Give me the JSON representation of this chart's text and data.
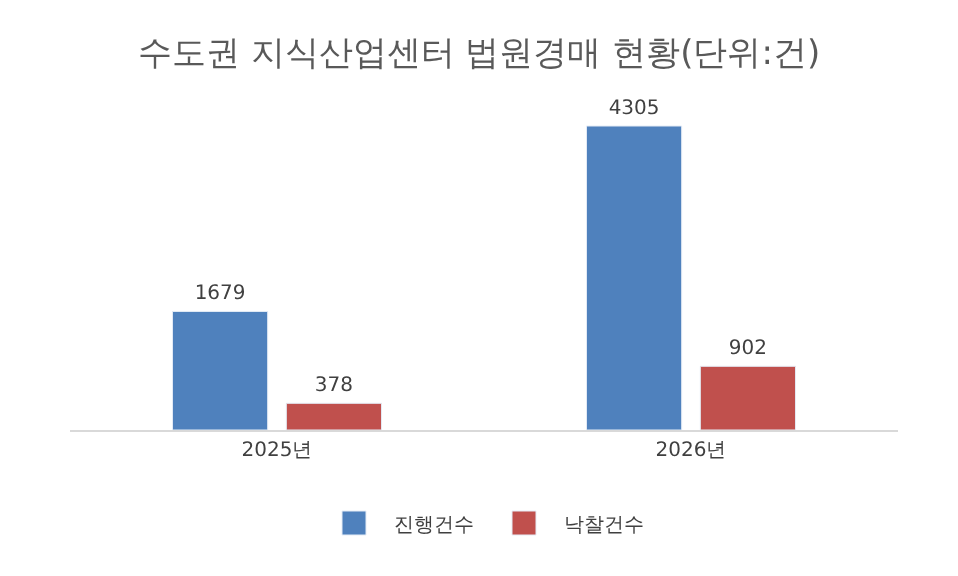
{
  "chart_data": {
    "type": "bar",
    "title": "수도권 지식산업센터 법원경매 현황(단위:건)",
    "categories": [
      "2025년",
      "2026년"
    ],
    "series": [
      {
        "name": "진행건수",
        "color": "#4f81bd",
        "values": [
          1679,
          4305
        ]
      },
      {
        "name": "낙찰건수",
        "color": "#c0504d",
        "values": [
          378,
          902
        ]
      }
    ],
    "data_labels": true,
    "legend": "bottom"
  }
}
